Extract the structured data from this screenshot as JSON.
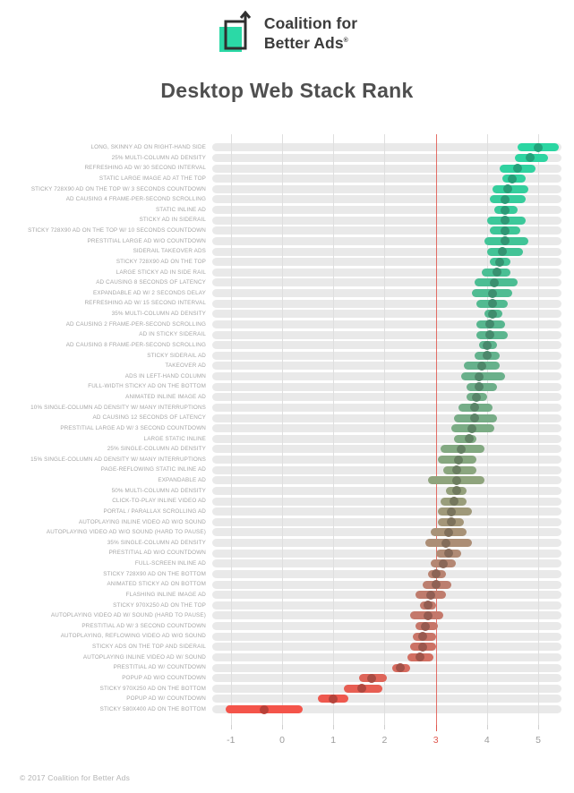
{
  "logo": {
    "line1": "Coalition for",
    "line2": "Better Ads",
    "registered": "®",
    "mark_color": "#2BD9A6",
    "outline_color": "#2F2F2F"
  },
  "title": "Desktop Web Stack Rank",
  "footer": "© 2017 Coalition for Better Ads",
  "chart_data": {
    "type": "bar",
    "subtype": "horizontal-range-dot",
    "title": "Desktop Web Stack Rank",
    "xlabel": "",
    "ylabel": "",
    "xlim": [
      -1.36,
      5.46
    ],
    "x_ticks": [
      -1,
      0,
      1,
      2,
      3,
      4,
      5
    ],
    "grid": true,
    "threshold_line": {
      "value": 3,
      "color": "#E0574E"
    },
    "track_color": "#E9E9E9",
    "palette": [
      {
        "pos": 0.0,
        "color": "#2BD6A2"
      },
      {
        "pos": 0.17,
        "color": "#41C497"
      },
      {
        "pos": 0.32,
        "color": "#58B68F"
      },
      {
        "pos": 0.43,
        "color": "#6FAE8A"
      },
      {
        "pos": 0.52,
        "color": "#7FAB84"
      },
      {
        "pos": 0.59,
        "color": "#8EA47D"
      },
      {
        "pos": 0.66,
        "color": "#A29779"
      },
      {
        "pos": 0.73,
        "color": "#B28974"
      },
      {
        "pos": 0.8,
        "color": "#C07B6D"
      },
      {
        "pos": 0.88,
        "color": "#CA7467"
      },
      {
        "pos": 0.93,
        "color": "#D86A5E"
      },
      {
        "pos": 0.97,
        "color": "#EA5B51"
      },
      {
        "pos": 1.0,
        "color": "#F4544A"
      }
    ],
    "rows": [
      {
        "label": "LONG, SKINNY AD ON RIGHT-HAND SIDE",
        "low": 4.6,
        "mid": 5.0,
        "high": 5.4
      },
      {
        "label": "25% MULTI-COLUMN AD DENSITY",
        "low": 4.55,
        "mid": 4.85,
        "high": 5.2
      },
      {
        "label": "REFRESHING AD W/ 30 SECOND INTERVAL",
        "low": 4.25,
        "mid": 4.6,
        "high": 4.95
      },
      {
        "label": "STATIC LARGE IMAGE AD AT THE TOP",
        "low": 4.3,
        "mid": 4.5,
        "high": 4.75
      },
      {
        "label": "STICKY 728X90 AD ON THE TOP W/ 3 SECONDS COUNTDOWN",
        "low": 4.1,
        "mid": 4.4,
        "high": 4.8
      },
      {
        "label": "AD CAUSING 4 FRAME-PER-SECOND SCROLLING",
        "low": 4.05,
        "mid": 4.35,
        "high": 4.75
      },
      {
        "label": "STATIC INLINE AD",
        "low": 4.15,
        "mid": 4.35,
        "high": 4.6
      },
      {
        "label": "STICKY AD IN SIDERAIL",
        "low": 4.0,
        "mid": 4.35,
        "high": 4.75
      },
      {
        "label": "STICKY 728X90 AD ON THE TOP W/ 10 SECONDS COUNTDOWN",
        "low": 4.05,
        "mid": 4.35,
        "high": 4.65
      },
      {
        "label": "PRESTITIAL LARGE AD W/O COUNTDOWN",
        "low": 3.95,
        "mid": 4.35,
        "high": 4.8
      },
      {
        "label": "SIDERAIL TAKEOVER ADS",
        "low": 4.0,
        "mid": 4.3,
        "high": 4.7
      },
      {
        "label": "STICKY 728X90 AD ON THE TOP",
        "low": 4.05,
        "mid": 4.25,
        "high": 4.45
      },
      {
        "label": "LARGE STICKY AD IN SIDE RAIL",
        "low": 3.9,
        "mid": 4.2,
        "high": 4.45
      },
      {
        "label": "AD CAUSING 8 SECONDS OF LATENCY",
        "low": 3.75,
        "mid": 4.15,
        "high": 4.6
      },
      {
        "label": "EXPANDABLE AD W/ 2 SECONDS DELAY",
        "low": 3.7,
        "mid": 4.1,
        "high": 4.5
      },
      {
        "label": "REFRESHING AD W/ 15 SECOND INTERVAL",
        "low": 3.8,
        "mid": 4.1,
        "high": 4.4
      },
      {
        "label": "35% MULTI-COLUMN AD DENSITY",
        "low": 3.95,
        "mid": 4.1,
        "high": 4.3
      },
      {
        "label": "AD CAUSING 2 FRAME-PER-SECOND SCROLLING",
        "low": 3.8,
        "mid": 4.05,
        "high": 4.35
      },
      {
        "label": "AD IN STICKY SIDERAIL",
        "low": 3.8,
        "mid": 4.05,
        "high": 4.4
      },
      {
        "label": "AD CAUSING 8 FRAME-PER-SECOND SCROLLING",
        "low": 3.85,
        "mid": 4.0,
        "high": 4.2
      },
      {
        "label": "STICKY SIDERAIL AD",
        "low": 3.75,
        "mid": 4.0,
        "high": 4.25
      },
      {
        "label": "TAKEOVER AD",
        "low": 3.55,
        "mid": 3.9,
        "high": 4.25
      },
      {
        "label": "ADS IN LEFT-HAND COLUMN",
        "low": 3.5,
        "mid": 3.85,
        "high": 4.35
      },
      {
        "label": "FULL-WIDTH STICKY AD ON THE BOTTOM",
        "low": 3.6,
        "mid": 3.85,
        "high": 4.2
      },
      {
        "label": "ANIMATED INLINE IMAGE AD",
        "low": 3.6,
        "mid": 3.8,
        "high": 4.0
      },
      {
        "label": "10% SINGLE-COLUMN AD DENSITY W/ MANY INTERRUPTIONS",
        "low": 3.45,
        "mid": 3.75,
        "high": 4.1
      },
      {
        "label": "AD CAUSING 12 SECONDS OF LATENCY",
        "low": 3.35,
        "mid": 3.75,
        "high": 4.2
      },
      {
        "label": "PRESTITIAL LARGE AD W/ 3 SECOND COUNTDOWN",
        "low": 3.3,
        "mid": 3.7,
        "high": 4.15
      },
      {
        "label": "LARGE STATIC INLINE",
        "low": 3.35,
        "mid": 3.65,
        "high": 3.8
      },
      {
        "label": "25% SINGLE-COLUMN AD DENSITY",
        "low": 3.1,
        "mid": 3.5,
        "high": 3.95
      },
      {
        "label": "15% SINGLE-COLUMN AD DENSITY W/ MANY INTERRUPTIONS",
        "low": 3.05,
        "mid": 3.45,
        "high": 3.8
      },
      {
        "label": "PAGE-REFLOWING STATIC INLINE AD",
        "low": 3.15,
        "mid": 3.4,
        "high": 3.8
      },
      {
        "label": "EXPANDABLE AD",
        "low": 2.85,
        "mid": 3.4,
        "high": 3.95
      },
      {
        "label": "50% MULTI-COLUMN AD DENSITY",
        "low": 3.2,
        "mid": 3.4,
        "high": 3.6
      },
      {
        "label": "CLICK-TO-PLAY INLINE VIDEO AD",
        "low": 3.1,
        "mid": 3.35,
        "high": 3.6
      },
      {
        "label": "PORTAL / PARALLAX SCROLLING AD",
        "low": 3.05,
        "mid": 3.3,
        "high": 3.7
      },
      {
        "label": "AUTOPLAYING INLINE VIDEO AD W/O SOUND",
        "low": 3.05,
        "mid": 3.3,
        "high": 3.55
      },
      {
        "label": "AUTOPLAYING VIDEO AD W/O SOUND (HARD TO PAUSE)",
        "low": 2.9,
        "mid": 3.25,
        "high": 3.6
      },
      {
        "label": "35% SINGLE-COLUMN AD DENSITY",
        "low": 2.8,
        "mid": 3.2,
        "high": 3.7
      },
      {
        "label": "PRESTITIAL AD W/O COUNTDOWN",
        "low": 3.0,
        "mid": 3.25,
        "high": 3.5
      },
      {
        "label": "FULL-SCREEN INLINE AD",
        "low": 2.9,
        "mid": 3.15,
        "high": 3.4
      },
      {
        "label": "STICKY 728X90 AD ON THE BOTTOM",
        "low": 2.85,
        "mid": 3.0,
        "high": 3.2
      },
      {
        "label": "ANIMATED STICKY AD ON BOTTOM",
        "low": 2.75,
        "mid": 3.0,
        "high": 3.3
      },
      {
        "label": "FLASHING INLINE IMAGE AD",
        "low": 2.6,
        "mid": 2.9,
        "high": 3.2
      },
      {
        "label": "STICKY 970X250 AD ON THE TOP",
        "low": 2.7,
        "mid": 2.85,
        "high": 3.0
      },
      {
        "label": "AUTOPLAYING VIDEO AD W/ SOUND (HARD TO PAUSE)",
        "low": 2.5,
        "mid": 2.85,
        "high": 3.15
      },
      {
        "label": "PRESTITIAL AD W/ 3 SECOND COUNTDOWN",
        "low": 2.6,
        "mid": 2.8,
        "high": 3.05
      },
      {
        "label": "AUTOPLAYING, REFLOWING VIDEO AD W/O SOUND",
        "low": 2.55,
        "mid": 2.75,
        "high": 3.0
      },
      {
        "label": "STICKY ADS ON THE TOP AND SIDERAIL",
        "low": 2.5,
        "mid": 2.75,
        "high": 3.0
      },
      {
        "label": "AUTOPLAYING INLINE VIDEO AD W/ SOUND",
        "low": 2.45,
        "mid": 2.7,
        "high": 2.95
      },
      {
        "label": "PRESTITIAL AD W/ COUNTDOWN",
        "low": 2.15,
        "mid": 2.3,
        "high": 2.5
      },
      {
        "label": "POPUP AD W/O COUNTDOWN",
        "low": 1.5,
        "mid": 1.75,
        "high": 2.05
      },
      {
        "label": "STICKY 970X250 AD ON THE BOTTOM",
        "low": 1.2,
        "mid": 1.55,
        "high": 1.95
      },
      {
        "label": "POPUP AD W/ COUNTDOWN",
        "low": 0.7,
        "mid": 1.0,
        "high": 1.3
      },
      {
        "label": "STICKY 580X400 AD ON THE BOTTOM",
        "low": -1.1,
        "mid": -0.35,
        "high": 0.4
      }
    ]
  }
}
